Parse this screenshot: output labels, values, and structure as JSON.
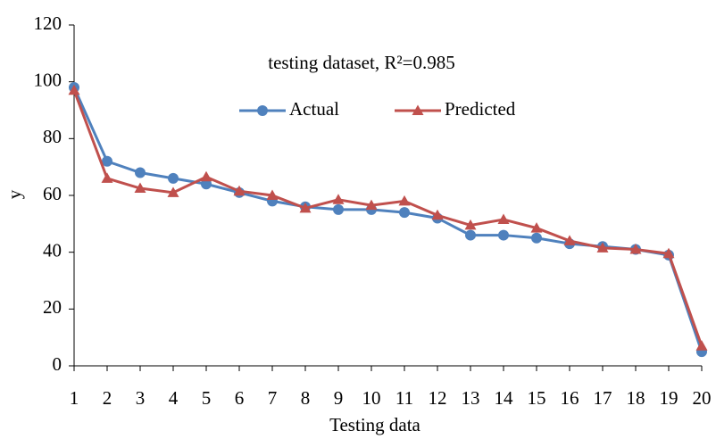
{
  "chart_data": {
    "type": "line",
    "title": "testing dataset, R²=0.985",
    "x_label": "Testing data",
    "y_label": "y",
    "x": [
      1,
      2,
      3,
      4,
      5,
      6,
      7,
      8,
      9,
      10,
      11,
      12,
      13,
      14,
      15,
      16,
      17,
      18,
      19,
      20
    ],
    "xlim": [
      1,
      20
    ],
    "xticks": [
      1,
      2,
      3,
      4,
      5,
      6,
      7,
      8,
      9,
      10,
      11,
      12,
      13,
      14,
      15,
      16,
      17,
      18,
      19,
      20
    ],
    "ylim": [
      0,
      120
    ],
    "yticks": [
      0,
      20,
      40,
      60,
      80,
      100,
      120
    ],
    "legend": "top",
    "series": [
      {
        "name": "Actual",
        "color": "#4f81bd",
        "marker": "circle",
        "values": [
          98,
          72,
          68,
          66,
          64,
          61,
          58,
          56,
          55,
          55,
          54,
          52,
          46,
          46,
          45,
          43,
          42,
          41,
          39,
          5
        ]
      },
      {
        "name": "Predicted",
        "color": "#c0504d",
        "marker": "triangle",
        "values": [
          97,
          66,
          62.5,
          61,
          66.5,
          61.5,
          60,
          55.5,
          58.5,
          56.5,
          58,
          53,
          49.5,
          51.5,
          48.5,
          44,
          41.5,
          41,
          39.5,
          7
        ]
      }
    ]
  }
}
